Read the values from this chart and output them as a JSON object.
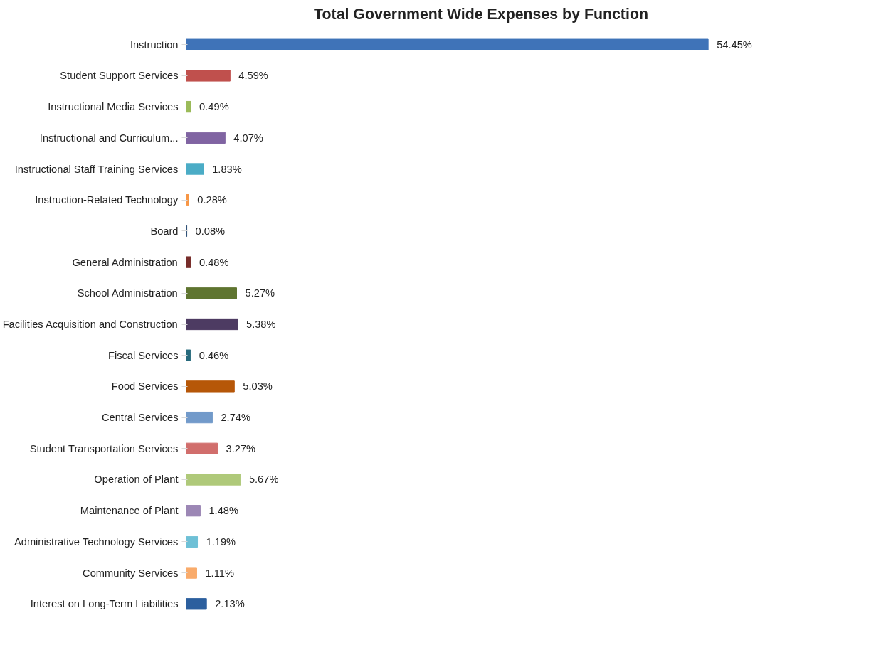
{
  "chart_data": {
    "type": "bar",
    "orientation": "horizontal",
    "title": "Total Government Wide Expenses by Function",
    "categories": [
      "Instruction",
      "Student Support Services",
      "Instructional Media Services",
      "Instructional and Curriculum...",
      "Instructional Staff Training Services",
      "Instruction-Related Technology",
      "Board",
      "General Administration",
      "School Administration",
      "Facilities Acquisition and Construction",
      "Fiscal Services",
      "Food Services",
      "Central Services",
      "Student Transportation Services",
      "Operation of Plant",
      "Maintenance of Plant",
      "Administrative Technology Services",
      "Community Services",
      "Interest on Long-Term Liabilities"
    ],
    "values": [
      54.45,
      4.59,
      0.49,
      4.07,
      1.83,
      0.28,
      0.08,
      0.48,
      5.27,
      5.38,
      0.46,
      5.03,
      2.74,
      3.27,
      5.67,
      1.48,
      1.19,
      1.11,
      2.13
    ],
    "value_labels": [
      "54.45%",
      "4.59%",
      "0.49%",
      "4.07%",
      "1.83%",
      "0.28%",
      "0.08%",
      "0.48%",
      "5.27%",
      "5.38%",
      "0.46%",
      "5.03%",
      "2.74%",
      "3.27%",
      "5.67%",
      "1.48%",
      "1.19%",
      "1.11%",
      "2.13%"
    ],
    "colors": [
      "#3f73b8",
      "#c0504d",
      "#9bbb59",
      "#8064a2",
      "#4bacc6",
      "#f79646",
      "#2c4d75",
      "#772c2a",
      "#5f7530",
      "#4d3b62",
      "#276a7c",
      "#b65708",
      "#729aca",
      "#d16e6c",
      "#afc97a",
      "#9c87b5",
      "#6ec0d6",
      "#f9ab6b",
      "#2c5f9e"
    ],
    "grid": false
  }
}
